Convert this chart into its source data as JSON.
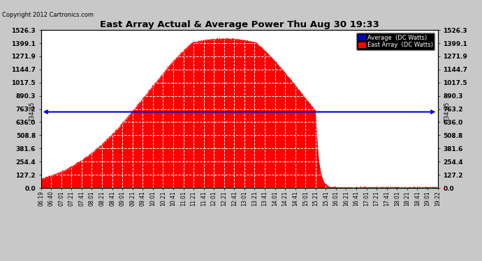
{
  "title": "East Array Actual & Average Power Thu Aug 30 19:33",
  "copyright": "Copyright 2012 Cartronics.com",
  "legend_avg": "Average  (DC Watts)",
  "legend_east": "East Array  (DC Watts)",
  "avg_value": 734.85,
  "ylim": [
    0,
    1526.3
  ],
  "yticks": [
    0.0,
    127.2,
    254.4,
    381.6,
    508.8,
    636.0,
    763.2,
    890.3,
    1017.5,
    1144.7,
    1271.9,
    1399.1,
    1526.3
  ],
  "ytick_labels": [
    "0.0",
    "127.2",
    "254.4",
    "381.6",
    "508.8",
    "636.0",
    "763.2",
    "890.3",
    "1017.5",
    "1144.7",
    "1271.9",
    "1399.1",
    "1526.3"
  ],
  "bg_color": "#c8c8c8",
  "plot_bg_color": "#ffffff",
  "fill_color": "#ff0000",
  "avg_line_color": "#0000cc",
  "title_color": "#000000",
  "copyright_color": "#000000",
  "xtick_labels": [
    "06:19",
    "06:40",
    "07:01",
    "07:21",
    "07:41",
    "08:01",
    "08:21",
    "08:41",
    "09:01",
    "09:21",
    "09:41",
    "10:01",
    "10:21",
    "10:41",
    "11:01",
    "11:21",
    "11:41",
    "12:01",
    "12:21",
    "12:41",
    "13:01",
    "13:21",
    "13:41",
    "14:01",
    "14:21",
    "14:41",
    "15:01",
    "15:21",
    "15:41",
    "16:01",
    "16:21",
    "16:41",
    "17:01",
    "17:21",
    "17:41",
    "18:01",
    "18:21",
    "18:41",
    "19:01",
    "19:22"
  ],
  "grid_color": "#c0c0c0",
  "grid_style": "--",
  "avg_label": "734.85"
}
